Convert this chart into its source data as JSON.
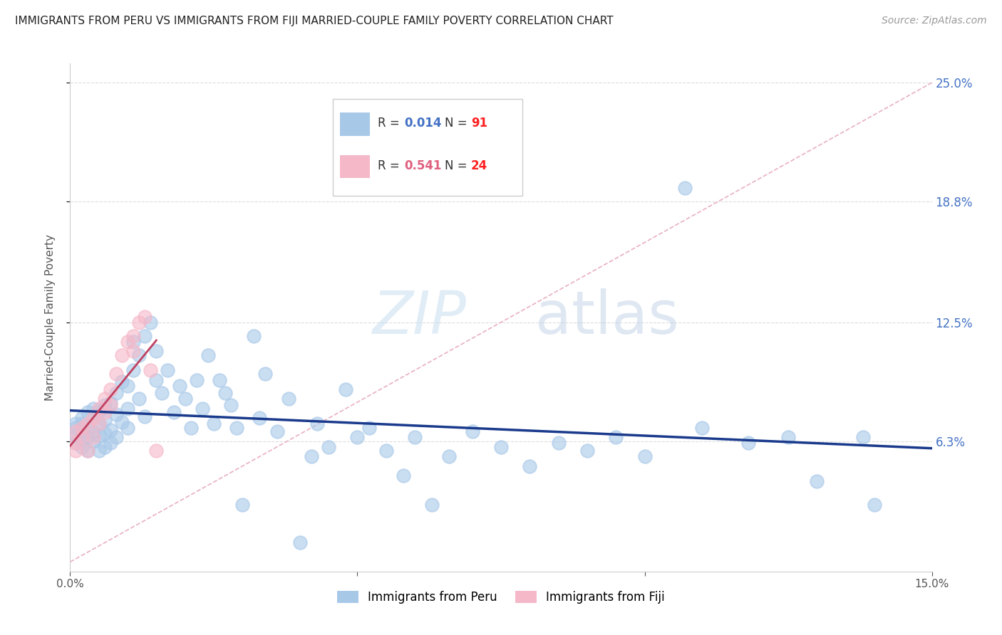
{
  "title": "IMMIGRANTS FROM PERU VS IMMIGRANTS FROM FIJI MARRIED-COUPLE FAMILY POVERTY CORRELATION CHART",
  "source": "Source: ZipAtlas.com",
  "ylabel_left": "Married-Couple Family Poverty",
  "xlim": [
    0.0,
    0.15
  ],
  "ylim": [
    -0.005,
    0.26
  ],
  "color_peru": "#a8c8e8",
  "color_fiji": "#f5b8c8",
  "color_peru_line": "#1a3a8c",
  "color_fiji_line": "#c04060",
  "color_r_peru": "#4472c4",
  "color_r_fiji": "#e06080",
  "color_n": "#ff2222",
  "watermark_zip": "ZIP",
  "watermark_atlas": "atlas",
  "peru_x": [
    0.001,
    0.001,
    0.001,
    0.001,
    0.002,
    0.002,
    0.002,
    0.002,
    0.002,
    0.003,
    0.003,
    0.003,
    0.003,
    0.004,
    0.004,
    0.004,
    0.004,
    0.005,
    0.005,
    0.005,
    0.005,
    0.006,
    0.006,
    0.006,
    0.006,
    0.007,
    0.007,
    0.007,
    0.008,
    0.008,
    0.008,
    0.009,
    0.009,
    0.01,
    0.01,
    0.01,
    0.011,
    0.011,
    0.012,
    0.012,
    0.013,
    0.013,
    0.014,
    0.015,
    0.015,
    0.016,
    0.017,
    0.018,
    0.019,
    0.02,
    0.021,
    0.022,
    0.023,
    0.024,
    0.025,
    0.026,
    0.027,
    0.028,
    0.029,
    0.03,
    0.032,
    0.033,
    0.034,
    0.036,
    0.038,
    0.04,
    0.042,
    0.043,
    0.045,
    0.048,
    0.05,
    0.052,
    0.055,
    0.058,
    0.06,
    0.063,
    0.066,
    0.07,
    0.075,
    0.08,
    0.085,
    0.09,
    0.095,
    0.1,
    0.107,
    0.11,
    0.118,
    0.125,
    0.13,
    0.138,
    0.14
  ],
  "peru_y": [
    0.066,
    0.07,
    0.062,
    0.072,
    0.068,
    0.064,
    0.075,
    0.06,
    0.072,
    0.07,
    0.065,
    0.078,
    0.058,
    0.075,
    0.068,
    0.08,
    0.063,
    0.072,
    0.066,
    0.079,
    0.058,
    0.074,
    0.067,
    0.082,
    0.06,
    0.069,
    0.083,
    0.062,
    0.077,
    0.065,
    0.088,
    0.073,
    0.094,
    0.08,
    0.092,
    0.07,
    0.1,
    0.115,
    0.108,
    0.085,
    0.118,
    0.076,
    0.125,
    0.095,
    0.11,
    0.088,
    0.1,
    0.078,
    0.092,
    0.085,
    0.07,
    0.095,
    0.08,
    0.108,
    0.072,
    0.095,
    0.088,
    0.082,
    0.07,
    0.03,
    0.118,
    0.075,
    0.098,
    0.068,
    0.085,
    0.01,
    0.055,
    0.072,
    0.06,
    0.09,
    0.065,
    0.07,
    0.058,
    0.045,
    0.065,
    0.03,
    0.055,
    0.068,
    0.06,
    0.05,
    0.062,
    0.058,
    0.065,
    0.055,
    0.195,
    0.07,
    0.062,
    0.065,
    0.042,
    0.065,
    0.03
  ],
  "fiji_x": [
    0.001,
    0.001,
    0.001,
    0.002,
    0.002,
    0.003,
    0.003,
    0.004,
    0.004,
    0.005,
    0.005,
    0.006,
    0.006,
    0.007,
    0.007,
    0.008,
    0.009,
    0.01,
    0.011,
    0.011,
    0.012,
    0.013,
    0.014,
    0.015
  ],
  "fiji_y": [
    0.062,
    0.058,
    0.068,
    0.065,
    0.07,
    0.058,
    0.072,
    0.075,
    0.065,
    0.08,
    0.072,
    0.085,
    0.078,
    0.09,
    0.082,
    0.098,
    0.108,
    0.115,
    0.11,
    0.118,
    0.125,
    0.128,
    0.1,
    0.058
  ]
}
